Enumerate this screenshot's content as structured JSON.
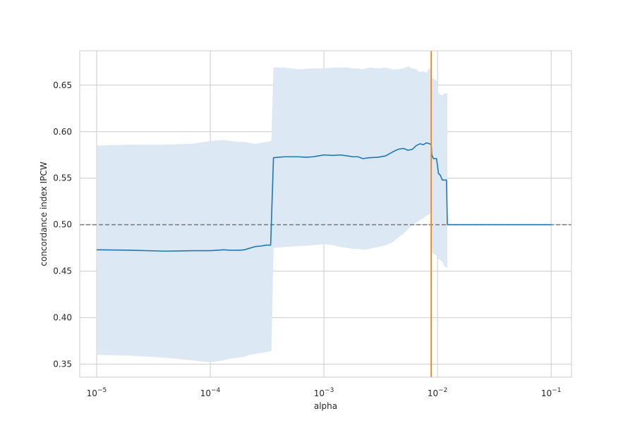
{
  "chart_data": {
    "type": "line",
    "title": "",
    "xlabel": "alpha",
    "ylabel": "concordance index IPCW",
    "x_scale": "log",
    "xlim": [
      7.1e-06,
      0.151
    ],
    "ylim": [
      0.336,
      0.687
    ],
    "grid": true,
    "x_ticks": [
      {
        "value": 1e-05,
        "base": "10",
        "exp": "−5"
      },
      {
        "value": 0.0001,
        "base": "10",
        "exp": "−4"
      },
      {
        "value": 0.001,
        "base": "10",
        "exp": "−3"
      },
      {
        "value": 0.01,
        "base": "10",
        "exp": "−2"
      },
      {
        "value": 0.1,
        "base": "10",
        "exp": "−1"
      }
    ],
    "y_ticks": [
      "0.35",
      "0.40",
      "0.45",
      "0.50",
      "0.55",
      "0.60",
      "0.65"
    ],
    "colors": {
      "line": "#1f77b4",
      "band": "#dce8f3",
      "vline": "#ff7f0e",
      "reference": "#808080",
      "grid": "#cccccc",
      "spine": "#cccccc"
    },
    "reference_line": {
      "y": 0.5,
      "style": "dashed"
    },
    "vertical_line": {
      "x": 0.0088
    },
    "series": [
      {
        "x": [
          1e-05,
          2e-05,
          4e-05,
          7e-05,
          0.0001,
          0.000115,
          0.00013,
          0.00015,
          0.00018,
          0.0002,
          0.00022,
          0.00025,
          0.00028,
          0.00031,
          0.00034,
          0.00036,
          0.00045,
          0.0006,
          0.0007,
          0.0008,
          0.0009,
          0.001,
          0.0012,
          0.0014,
          0.0016,
          0.0018,
          0.002,
          0.0022,
          0.0025,
          0.003,
          0.0035,
          0.004,
          0.0045,
          0.005,
          0.0055,
          0.006,
          0.0065,
          0.007,
          0.0075,
          0.008,
          0.0085,
          0.0088,
          0.0089,
          0.0092,
          0.0095,
          0.0098,
          0.0102,
          0.0106,
          0.011,
          0.0115,
          0.012,
          0.0122,
          0.015,
          0.02,
          0.05,
          0.1
        ],
        "y": [
          0.473,
          0.4725,
          0.4715,
          0.472,
          0.472,
          0.4725,
          0.473,
          0.4725,
          0.4725,
          0.473,
          0.4745,
          0.4765,
          0.477,
          0.478,
          0.478,
          0.572,
          0.573,
          0.573,
          0.5725,
          0.573,
          0.574,
          0.575,
          0.5745,
          0.575,
          0.574,
          0.573,
          0.573,
          0.571,
          0.572,
          0.5725,
          0.574,
          0.578,
          0.581,
          0.582,
          0.58,
          0.581,
          0.585,
          0.587,
          0.586,
          0.588,
          0.587,
          0.586,
          0.575,
          0.571,
          0.571,
          0.571,
          0.555,
          0.553,
          0.548,
          0.548,
          0.548,
          0.5,
          0.5,
          0.5,
          0.5,
          0.5
        ]
      }
    ],
    "band": {
      "x": [
        1e-05,
        2e-05,
        4e-05,
        7e-05,
        0.0001,
        0.00013,
        0.00015,
        0.00018,
        0.0002,
        0.00022,
        0.00025,
        0.00028,
        0.00031,
        0.00034,
        0.000345,
        0.00036,
        0.00045,
        0.0006,
        0.0008,
        0.001,
        0.0012,
        0.0014,
        0.0016,
        0.0018,
        0.002,
        0.0022,
        0.0025,
        0.003,
        0.0035,
        0.004,
        0.0045,
        0.005,
        0.0055,
        0.006,
        0.0065,
        0.007,
        0.0075,
        0.008,
        0.0085,
        0.0088,
        0.0089,
        0.0095,
        0.0099,
        0.0102,
        0.0106,
        0.011,
        0.0115,
        0.012,
        0.0122
      ],
      "lower": [
        0.36,
        0.359,
        0.357,
        0.354,
        0.352,
        0.354,
        0.356,
        0.357,
        0.358,
        0.36,
        0.361,
        0.362,
        0.363,
        0.364,
        0.364,
        0.475,
        0.476,
        0.477,
        0.478,
        0.479,
        0.478,
        0.476,
        0.475,
        0.474,
        0.474,
        0.473,
        0.474,
        0.476,
        0.478,
        0.481,
        0.486,
        0.49,
        0.495,
        0.5,
        0.502,
        0.505,
        0.507,
        0.51,
        0.511,
        0.513,
        0.47,
        0.468,
        0.466,
        0.463,
        0.462,
        0.46,
        0.455,
        0.454,
        0.454
      ],
      "upper": [
        0.585,
        0.586,
        0.586,
        0.587,
        0.59,
        0.591,
        0.59,
        0.589,
        0.589,
        0.588,
        0.587,
        0.588,
        0.589,
        0.59,
        0.59,
        0.669,
        0.669,
        0.667,
        0.668,
        0.668,
        0.669,
        0.669,
        0.669,
        0.668,
        0.668,
        0.667,
        0.669,
        0.668,
        0.669,
        0.667,
        0.667,
        0.668,
        0.67,
        0.668,
        0.667,
        0.664,
        0.665,
        0.663,
        0.669,
        0.664,
        0.658,
        0.656,
        0.654,
        0.641,
        0.64,
        0.639,
        0.641,
        0.641,
        0.641
      ]
    }
  }
}
